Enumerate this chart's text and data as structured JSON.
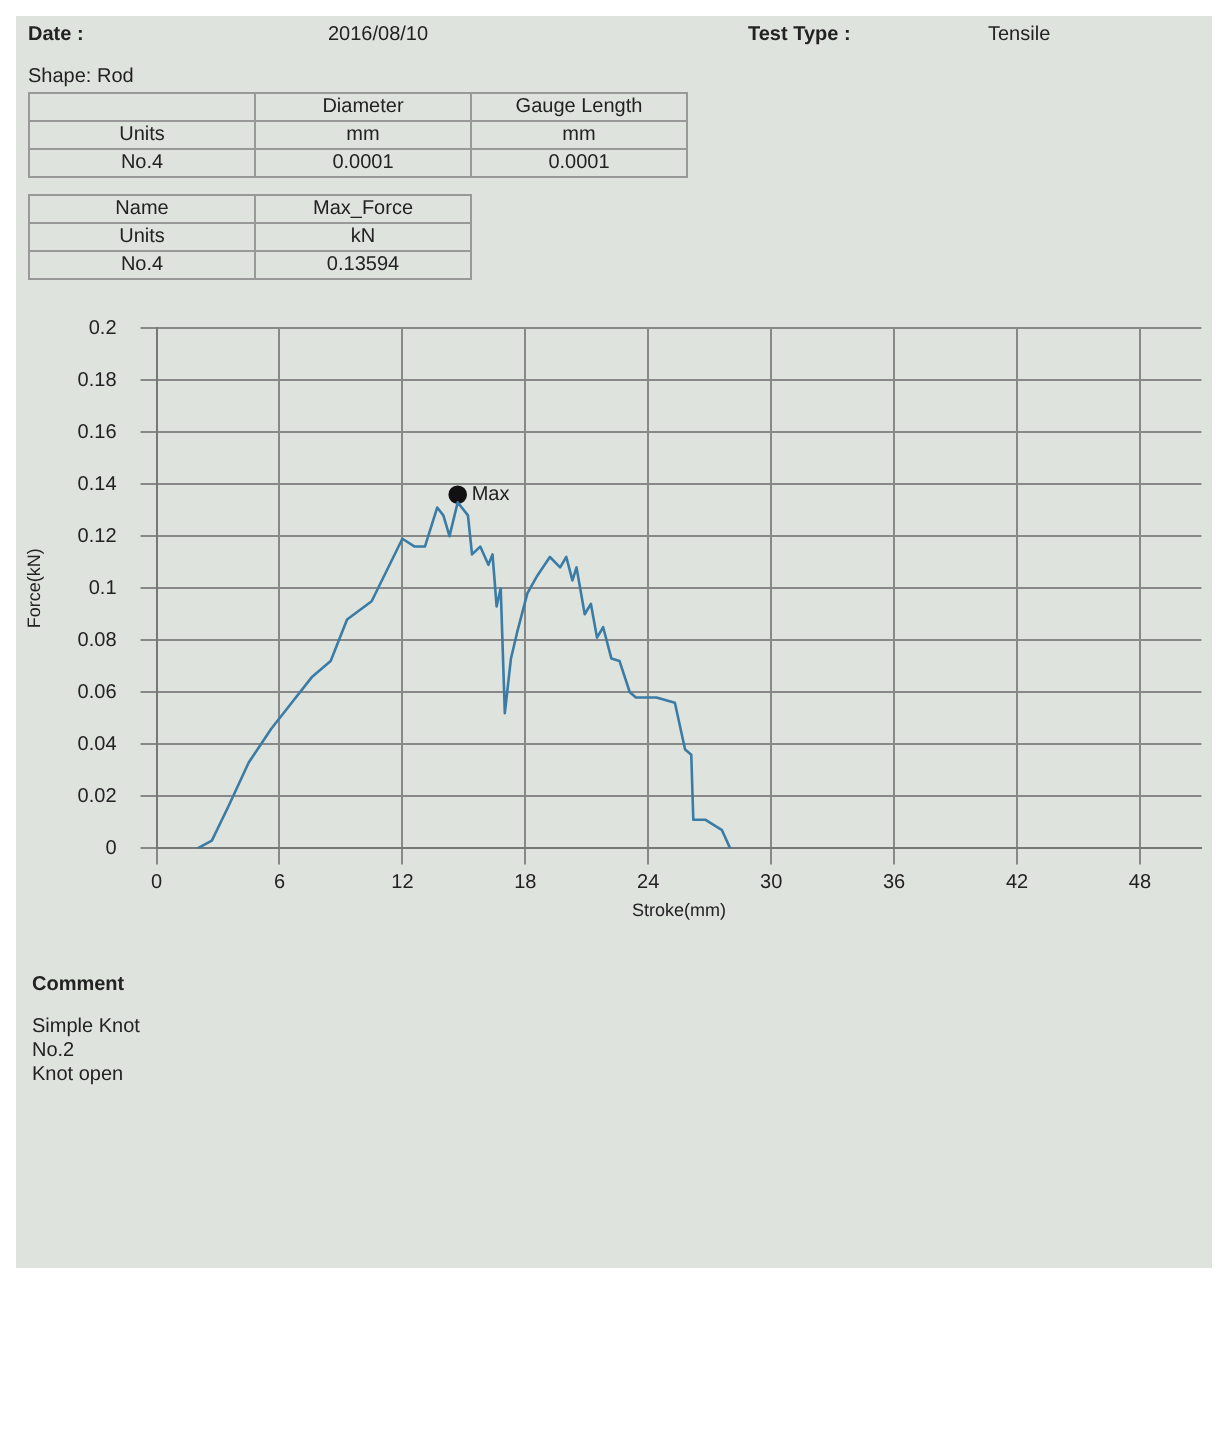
{
  "chart_data": {
    "type": "line",
    "xlabel": "Stroke(mm)",
    "ylabel": "Force(kN)",
    "xlim": [
      0,
      51
    ],
    "xticks": [
      0,
      6,
      12,
      18,
      24,
      30,
      36,
      42,
      48
    ],
    "ylim": [
      0,
      0.2
    ],
    "yticks": [
      0,
      0.02,
      0.04,
      0.06,
      0.08,
      0.1,
      0.12,
      0.14,
      0.16,
      0.18,
      0.2
    ],
    "grid": true,
    "series": [
      {
        "color": "#3a7ca5",
        "marker": "none",
        "x": [
          2.0,
          2.7,
          3.5,
          4.5,
          5.6,
          6.3,
          7.6,
          8.5,
          9.3,
          10.5,
          12.0,
          12.6,
          13.1,
          13.7,
          14.0,
          14.3,
          14.7,
          15.2,
          15.4,
          15.8,
          16.2,
          16.4,
          16.6,
          16.8,
          17.0,
          17.3,
          17.6,
          18.1,
          18.6,
          19.2,
          19.7,
          20.0,
          20.3,
          20.5,
          20.9,
          21.2,
          21.5,
          21.8,
          22.2,
          22.6,
          23.1,
          23.4,
          24.4,
          25.3,
          25.8,
          26.1,
          26.2,
          26.8,
          27.6,
          28.0
        ],
        "values": [
          0,
          0.003,
          0.016,
          0.033,
          0.046,
          0.053,
          0.066,
          0.072,
          0.088,
          0.095,
          0.119,
          0.116,
          0.116,
          0.131,
          0.128,
          0.12,
          0.133,
          0.128,
          0.113,
          0.116,
          0.109,
          0.113,
          0.093,
          0.1,
          0.052,
          0.073,
          0.083,
          0.098,
          0.105,
          0.112,
          0.108,
          0.112,
          0.103,
          0.108,
          0.09,
          0.094,
          0.081,
          0.085,
          0.073,
          0.072,
          0.06,
          0.058,
          0.058,
          0.056,
          0.038,
          0.036,
          0.011,
          0.011,
          0.007,
          0
        ]
      },
      {
        "type": "scatter",
        "color": "#111111",
        "marker": "circle",
        "x": [
          14.7
        ],
        "values": [
          0.13594
        ]
      }
    ],
    "annotations": [
      "Date :",
      "2016/08/10",
      "Test Type :",
      "Tensile",
      "Shape: Rod",
      "Diameter",
      "Gauge Length",
      "Units",
      "mm",
      "mm",
      "No.4",
      "0.0001",
      "0.0001",
      "Name",
      "Max_Force",
      "Units",
      "kN",
      "No.4",
      "0.13594",
      "Comment",
      "Simple Knot",
      "No.2",
      "Knot open",
      {
        "text": "Max",
        "x": 14.7,
        "y": 0.13594
      }
    ]
  }
}
